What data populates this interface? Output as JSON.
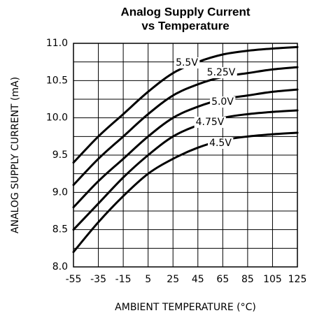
{
  "chart_data": {
    "type": "line",
    "title": "Analog Supply Current",
    "subtitle": "vs Temperature",
    "x_label": "AMBIENT TEMPERATURE (°C)",
    "y_label": "ANALOG SUPPLY CURRENT (mA)",
    "x": [
      -55,
      -35,
      -15,
      5,
      25,
      45,
      65,
      85,
      105,
      125
    ],
    "series": [
      {
        "name": "5.5V",
        "color": "#000000",
        "values": [
          9.4,
          9.75,
          10.05,
          10.35,
          10.6,
          10.75,
          10.85,
          10.9,
          10.93,
          10.95
        ]
      },
      {
        "name": "5.25V",
        "color": "#000000",
        "values": [
          9.1,
          9.45,
          9.75,
          10.05,
          10.3,
          10.45,
          10.55,
          10.6,
          10.65,
          10.68
        ]
      },
      {
        "name": "5.0V",
        "color": "#000000",
        "values": [
          8.8,
          9.15,
          9.45,
          9.75,
          10.0,
          10.15,
          10.25,
          10.3,
          10.35,
          10.38
        ]
      },
      {
        "name": "4.75V",
        "color": "#000000",
        "values": [
          8.5,
          8.85,
          9.2,
          9.5,
          9.75,
          9.9,
          10.0,
          10.05,
          10.08,
          10.1
        ]
      },
      {
        "name": "4.5V",
        "color": "#000000",
        "values": [
          8.2,
          8.6,
          8.95,
          9.25,
          9.45,
          9.6,
          9.7,
          9.75,
          9.78,
          9.8
        ]
      }
    ],
    "xlim": [
      -55,
      125
    ],
    "xticks": [
      -55,
      -35,
      -15,
      5,
      25,
      45,
      65,
      85,
      105,
      125
    ],
    "ylim": [
      8,
      11
    ],
    "yticks": [
      {
        "value": 8,
        "label": "8.0"
      },
      8.5,
      {
        "value": 9,
        "label": "9.0"
      },
      9.5,
      {
        "value": 10,
        "label": "10.0"
      },
      10.5,
      {
        "value": 11,
        "label": "11.0"
      }
    ],
    "grid": true
  }
}
